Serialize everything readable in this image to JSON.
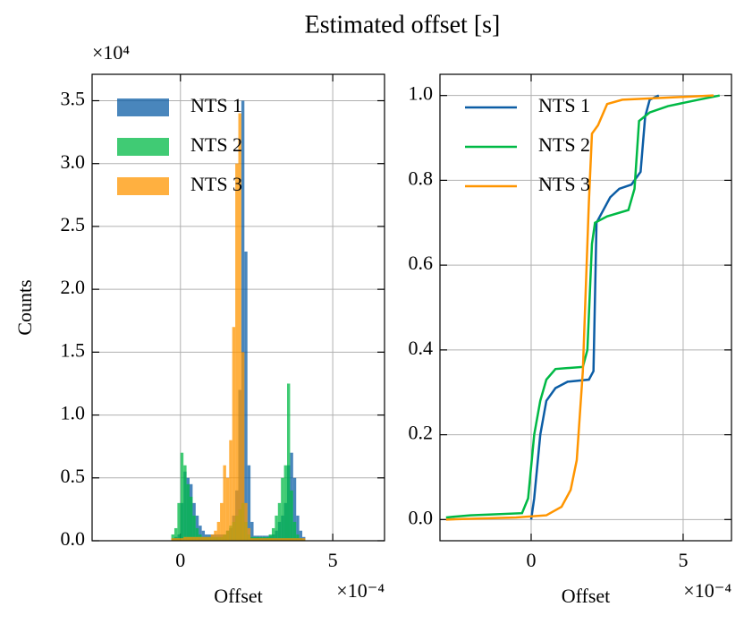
{
  "title": "Estimated offset [s]",
  "chart_data": [
    {
      "type": "histogram",
      "y_label": "Counts",
      "x_label": "Offset",
      "x_multiplier": "×10⁻⁴",
      "y_multiplier": "×10⁴",
      "bins": [
        -0.3,
        -0.2,
        -0.1,
        0,
        0.1,
        0.2,
        0.3,
        0.4,
        0.5,
        0.6,
        0.7,
        0.8,
        0.9,
        1.0,
        1.1,
        1.2,
        1.3,
        1.4,
        1.5,
        1.6,
        1.7,
        1.8,
        1.9,
        2.0,
        2.1,
        2.2,
        2.3,
        2.4,
        2.5,
        2.6,
        2.7,
        2.8,
        2.9,
        3.0,
        3.1,
        3.2,
        3.3,
        3.4,
        3.5,
        3.6,
        3.7,
        3.8,
        3.9,
        4.0,
        4.1
      ],
      "series": [
        {
          "name": "NTS 1",
          "color": "#0C5DA5",
          "values": [
            0.02,
            0.03,
            0.05,
            0.3,
            0.55,
            0.5,
            0.45,
            0.3,
            0.2,
            0.12,
            0.08,
            0.05,
            0.05,
            0.05,
            0.05,
            0.05,
            0.05,
            0.05,
            0.08,
            0.1,
            0.2,
            0.4,
            1.2,
            3.5,
            2.3,
            0.6,
            0.15,
            0.04,
            0.04,
            0.04,
            0.04,
            0.04,
            0.04,
            0.05,
            0.08,
            0.15,
            0.2,
            0.3,
            0.6,
            0.7,
            0.5,
            0.2,
            0.08,
            0.03
          ]
        },
        {
          "name": "NTS 2",
          "color": "#00B945",
          "values": [
            0.05,
            0.1,
            0.3,
            0.7,
            0.6,
            0.45,
            0.35,
            0.2,
            0.1,
            0.05,
            0.03,
            0.03,
            0.03,
            0.03,
            0.03,
            0.03,
            0.03,
            0.05,
            0.08,
            0.12,
            0.15,
            0.2,
            0.25,
            0.3,
            0.15,
            0.05,
            0.03,
            0.03,
            0.03,
            0.03,
            0.03,
            0.03,
            0.05,
            0.1,
            0.2,
            0.3,
            0.5,
            0.6,
            1.25,
            0.4,
            0.15,
            0.05,
            0.02,
            0.01
          ]
        },
        {
          "name": "NTS 3",
          "color": "#FF9500",
          "values": [
            0.02,
            0.02,
            0.02,
            0.02,
            0.03,
            0.03,
            0.03,
            0.03,
            0.03,
            0.03,
            0.03,
            0.03,
            0.03,
            0.05,
            0.08,
            0.15,
            0.3,
            0.6,
            0.5,
            0.8,
            1.7,
            3.0,
            3.4,
            1.5,
            0.3,
            0.1,
            0.02,
            0.02,
            0.02,
            0.02,
            0.02,
            0.02,
            0.02,
            0.02,
            0.02,
            0.02,
            0.02,
            0.02,
            0.02,
            0.02,
            0.02,
            0.02,
            0.02,
            0.02
          ]
        }
      ],
      "xlim": [
        -2.9,
        6.7
      ],
      "ylim": [
        0,
        3.71
      ],
      "xticks": [
        0,
        5
      ],
      "yticks": [
        {
          "value": 0,
          "label": "0.0"
        },
        0.5,
        {
          "value": 1,
          "label": "1.0"
        },
        1.5,
        {
          "value": 2,
          "label": "2.0"
        },
        2.5,
        {
          "value": 3,
          "label": "3.0"
        },
        3.5
      ],
      "grid": true,
      "legend": "upper left"
    },
    {
      "type": "line",
      "x_label": "Offset",
      "x_multiplier": "×10⁻⁴",
      "series": [
        {
          "name": "NTS 1",
          "color": "#0C5DA5",
          "x": [
            0,
            0.1,
            0.3,
            0.5,
            0.8,
            1.2,
            1.9,
            2.05,
            2.15,
            2.3,
            2.6,
            2.9,
            3.3,
            3.6,
            3.75,
            3.9,
            4.2
          ],
          "values": [
            0,
            0.05,
            0.2,
            0.28,
            0.31,
            0.325,
            0.33,
            0.35,
            0.7,
            0.72,
            0.76,
            0.78,
            0.79,
            0.82,
            0.95,
            0.99,
            1.0
          ]
        },
        {
          "name": "NTS 2",
          "color": "#00B945",
          "x": [
            -2.8,
            -2,
            -0.3,
            -0.1,
            0.1,
            0.3,
            0.5,
            0.8,
            1.7,
            1.85,
            2.0,
            2.1,
            2.5,
            3.2,
            3.4,
            3.55,
            3.9,
            4.5,
            5.5,
            6.2
          ],
          "values": [
            0.005,
            0.01,
            0.015,
            0.05,
            0.2,
            0.28,
            0.33,
            0.355,
            0.36,
            0.4,
            0.65,
            0.7,
            0.715,
            0.73,
            0.78,
            0.94,
            0.96,
            0.975,
            0.99,
            1.0
          ]
        },
        {
          "name": "NTS 3",
          "color": "#FF9500",
          "x": [
            -2.8,
            -0.5,
            0.5,
            1.0,
            1.3,
            1.5,
            1.7,
            1.9,
            2.0,
            2.2,
            2.5,
            3.0,
            4.5,
            6.0
          ],
          "values": [
            0,
            0.005,
            0.01,
            0.03,
            0.07,
            0.14,
            0.35,
            0.75,
            0.91,
            0.93,
            0.98,
            0.99,
            0.995,
            1.0
          ]
        }
      ],
      "xlim": [
        -3.0,
        6.59
      ],
      "ylim": [
        -0.05,
        1.05
      ],
      "xticks": [
        0,
        5
      ],
      "yticks": [
        {
          "value": 0,
          "label": "0.0"
        },
        0.2,
        0.4,
        0.6,
        0.8,
        {
          "value": 1,
          "label": "1.0"
        }
      ],
      "grid": true,
      "legend": "upper left"
    }
  ]
}
